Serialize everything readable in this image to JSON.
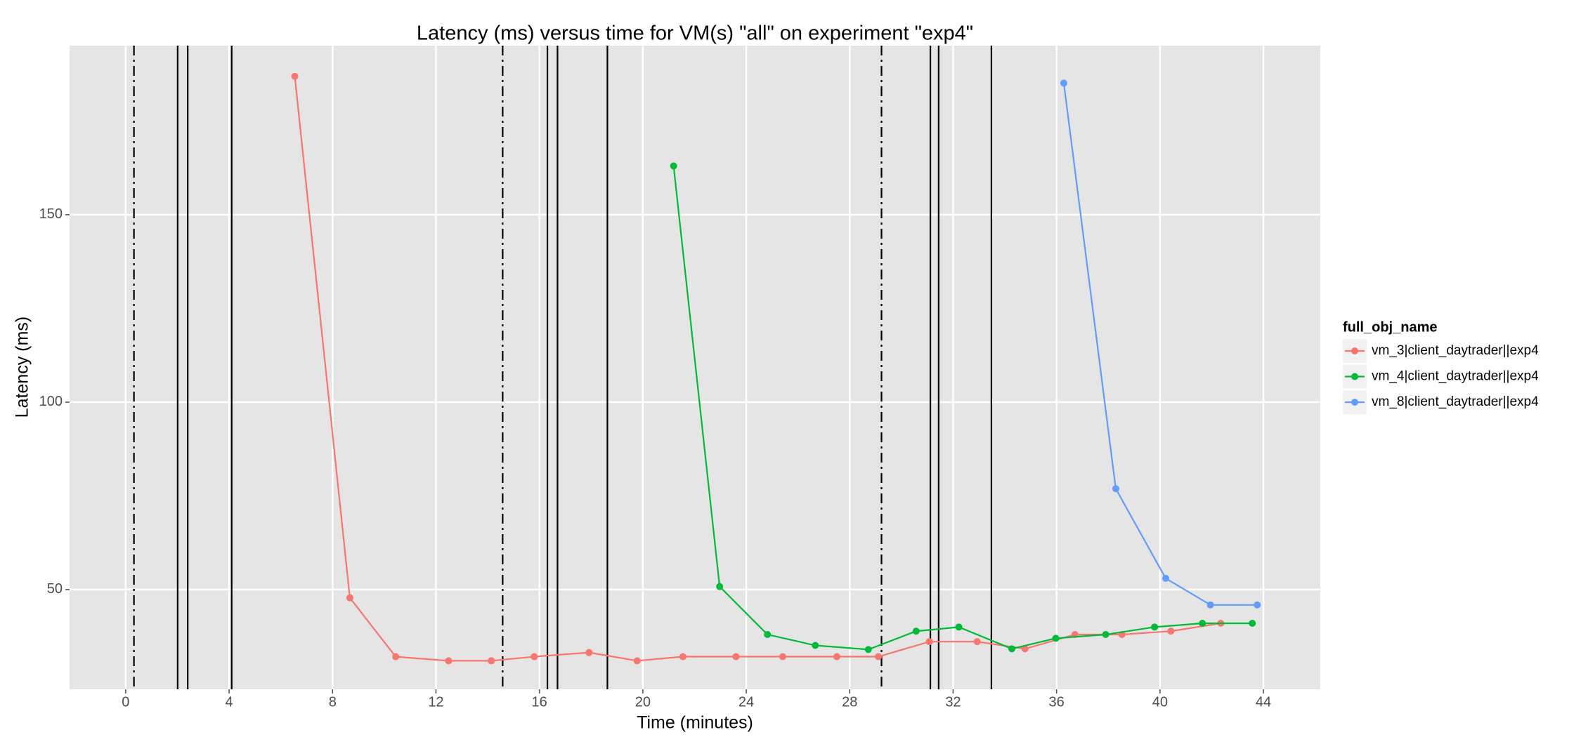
{
  "chart_data": {
    "type": "line",
    "title": "Latency (ms) versus time for VM(s) \"all\" on experiment \"exp4\"",
    "x_label": "Time (minutes)",
    "y_label": "Latency (ms)",
    "legend_title": "full_obj_name",
    "legend_position": "right",
    "grid": true,
    "xlim": [
      -2.17,
      46.2
    ],
    "ylim": [
      23.4,
      195.1
    ],
    "xticks": [
      0,
      4,
      8,
      12,
      16,
      20,
      24,
      28,
      32,
      36,
      40,
      44
    ],
    "yticks": [
      50,
      100,
      150
    ],
    "series": [
      {
        "name": "vm_3|client_daytrader||exp4",
        "color": "#F8766D",
        "x": [
          6.54,
          8.67,
          10.44,
          12.49,
          14.14,
          15.8,
          17.92,
          19.78,
          21.55,
          23.6,
          25.41,
          27.5,
          29.11,
          31.08,
          32.93,
          34.78,
          36.71,
          38.53,
          40.42,
          42.35
        ],
        "values": [
          186.9,
          47.8,
          32.1,
          31.0,
          31.0,
          32.1,
          33.2,
          31.0,
          32.1,
          32.1,
          32.1,
          32.1,
          32.1,
          36.1,
          36.1,
          34.2,
          38.0,
          38.0,
          38.9,
          41.0
        ]
      },
      {
        "name": "vm_4|client_daytrader||exp4",
        "color": "#00BA38",
        "x": [
          21.19,
          22.97,
          24.82,
          26.67,
          28.72,
          30.57,
          32.22,
          34.27,
          35.97,
          37.9,
          39.79,
          41.64,
          43.57
        ],
        "values": [
          163.0,
          50.8,
          38.0,
          35.1,
          34.0,
          38.9,
          40.0,
          34.2,
          37.0,
          38.0,
          40.0,
          41.0,
          41.0
        ]
      },
      {
        "name": "vm_8|client_daytrader||exp4",
        "color": "#619CFF",
        "x": [
          36.28,
          38.29,
          40.22,
          41.95,
          43.76
        ],
        "values": [
          185.1,
          76.9,
          53.0,
          45.9,
          45.9
        ]
      }
    ],
    "vlines": [
      {
        "x": 0.32,
        "style": "dashdot"
      },
      {
        "x": 14.58,
        "style": "dashdot"
      },
      {
        "x": 29.23,
        "style": "dashdot"
      },
      {
        "x": 2.01,
        "style": "solid"
      },
      {
        "x": 2.4,
        "style": "solid"
      },
      {
        "x": 4.1,
        "style": "solid"
      },
      {
        "x": 16.31,
        "style": "solid"
      },
      {
        "x": 16.7,
        "style": "solid"
      },
      {
        "x": 18.63,
        "style": "solid"
      },
      {
        "x": 31.12,
        "style": "solid"
      },
      {
        "x": 31.44,
        "style": "solid"
      },
      {
        "x": 33.48,
        "style": "solid"
      }
    ]
  }
}
